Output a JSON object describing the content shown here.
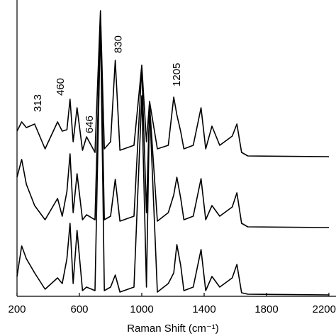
{
  "chart_data": {
    "type": "line",
    "x_label": "Raman Shift (cm⁻¹)",
    "xlim": [
      200,
      2200
    ],
    "xticks": [
      200,
      600,
      1000,
      1400,
      1800,
      2200
    ],
    "ylim": [
      0,
      102
    ],
    "annotations": [
      313,
      460,
      646,
      830,
      1205
    ],
    "x": [
      200,
      230,
      260,
      313,
      380,
      460,
      490,
      520,
      540,
      560,
      585,
      620,
      646,
      700,
      735,
      760,
      800,
      830,
      860,
      950,
      1000,
      1030,
      1050,
      1100,
      1170,
      1205,
      1225,
      1250,
      1270,
      1330,
      1380,
      1410,
      1450,
      1500,
      1580,
      1610,
      1640,
      1680,
      2200
    ],
    "series": [
      {
        "color": "#000000",
        "values": [
          58.25,
          61.5,
          59.5,
          60.75,
          52,
          61.5,
          58.25,
          58.75,
          69.5,
          54.5,
          66.5,
          51.5,
          56.25,
          50.75,
          100.75,
          52,
          54.5,
          83.25,
          51.5,
          53.25,
          81.5,
          54.5,
          68.75,
          52,
          53.25,
          70.25,
          64,
          58,
          52,
          53.25,
          66.5,
          52,
          60,
          53.25,
          56.5,
          60.75,
          50.75,
          49.5,
          49.25
        ]
      },
      {
        "color": "#000000",
        "values": [
          42,
          48.25,
          39.5,
          32,
          27,
          34.5,
          28.25,
          37,
          50.25,
          29.5,
          43.25,
          27,
          28.75,
          27,
          97,
          27,
          28.25,
          41.25,
          26.5,
          28.25,
          80.75,
          29.5,
          67.5,
          26.5,
          29.5,
          35.75,
          42,
          34.5,
          27,
          28.25,
          41.5,
          27,
          32,
          28.25,
          31.5,
          36.5,
          25.75,
          24.5,
          24.25
        ]
      },
      {
        "color": "#000000",
        "values": [
          7,
          17.75,
          13.25,
          8.25,
          2.5,
          6.5,
          4.5,
          13.25,
          25.75,
          4.5,
          23.25,
          2,
          3.25,
          2,
          97,
          2,
          3.25,
          7.5,
          1.5,
          3.25,
          70.75,
          3.25,
          67,
          1.5,
          4.5,
          8.25,
          18.25,
          10.75,
          2,
          3.25,
          16.5,
          2,
          7,
          3.25,
          6.5,
          11.25,
          1.25,
          0.75,
          0.5
        ]
      }
    ]
  }
}
